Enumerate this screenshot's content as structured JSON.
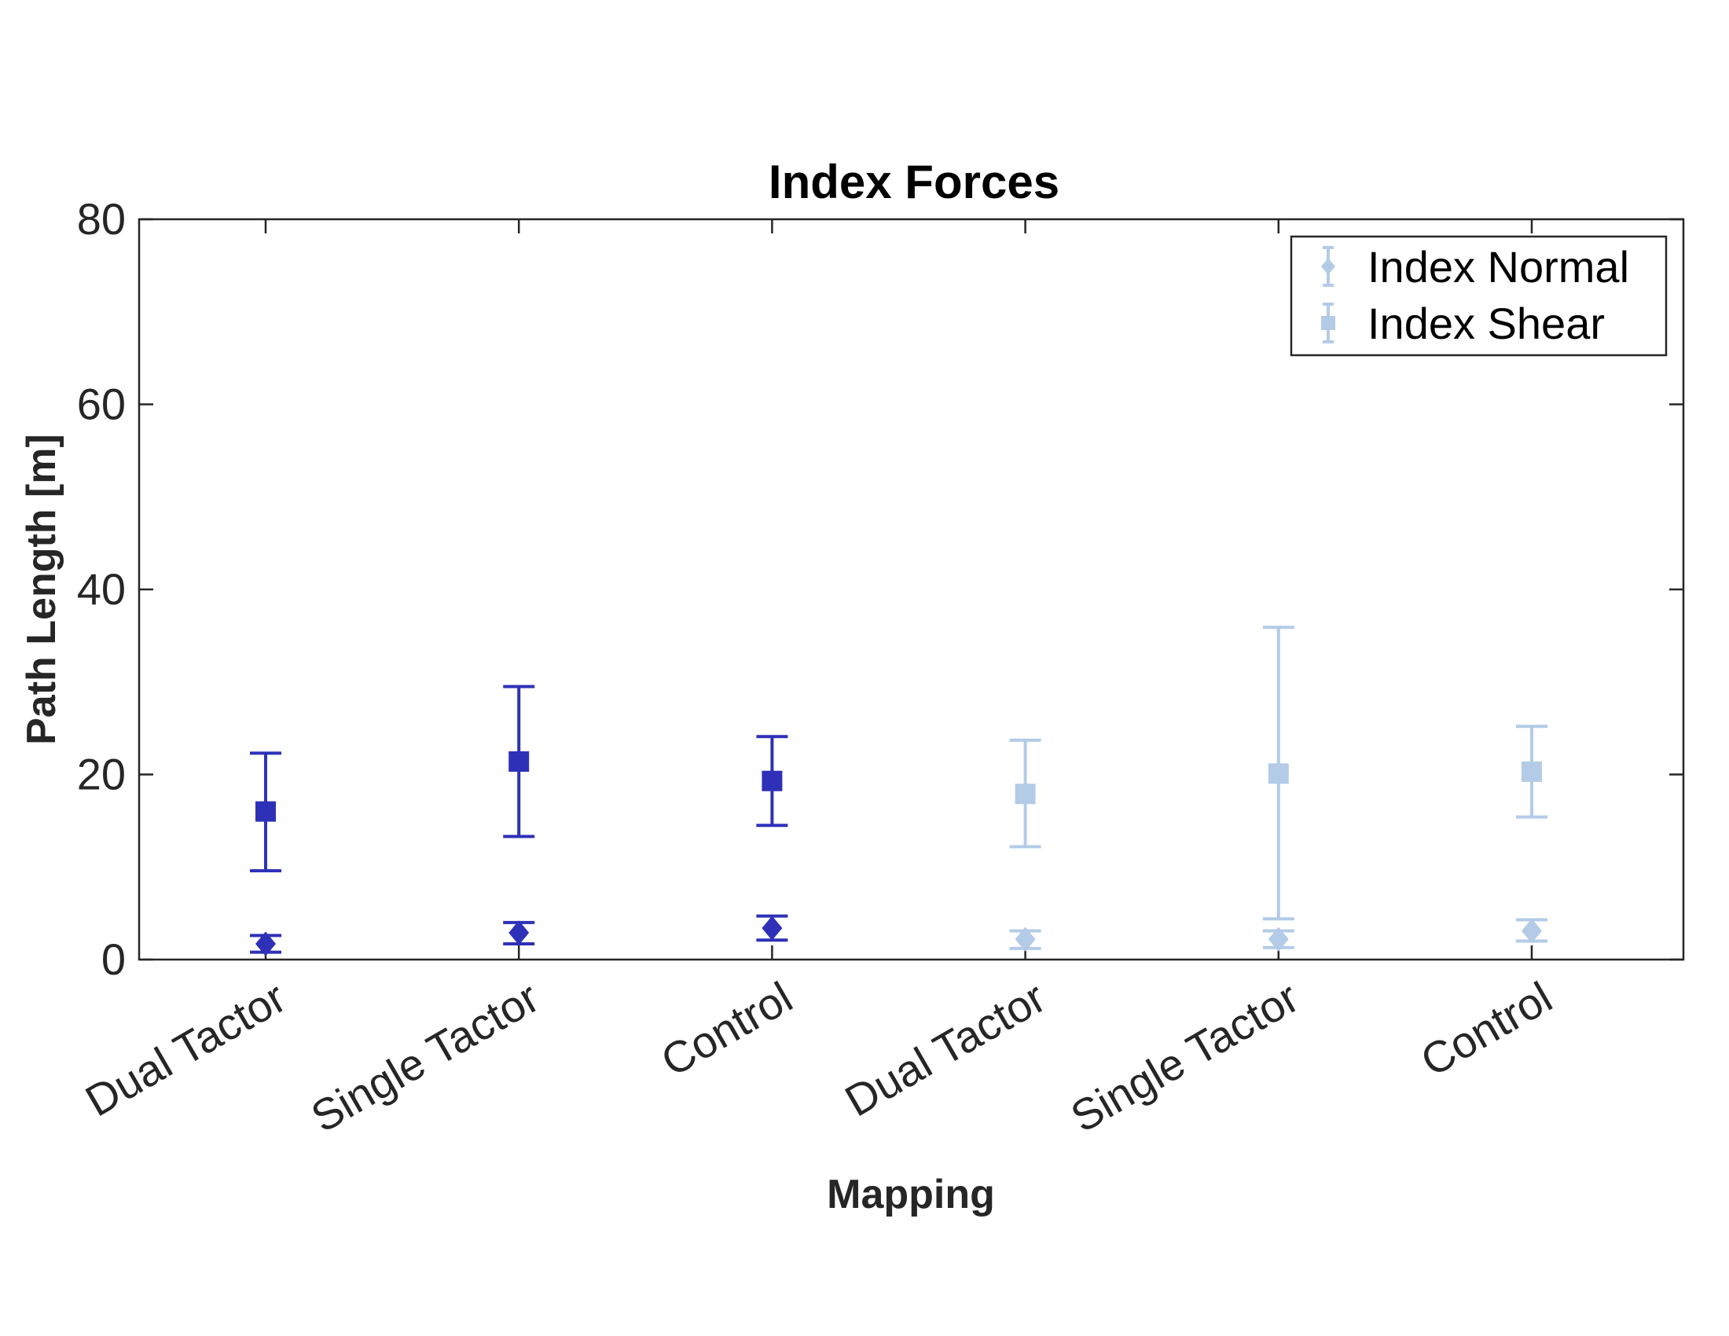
{
  "chart_data": {
    "type": "errorbar",
    "title": "Index Forces",
    "xlabel": "Mapping",
    "ylabel": "Path Length [m]",
    "ylim": [
      0,
      80
    ],
    "yticks": [
      "0",
      "20",
      "40",
      "60",
      "80"
    ],
    "categories": [
      "Dual Tactor",
      "Single Tactor",
      "Control",
      "Dual Tactor",
      "Single Tactor",
      "Control"
    ],
    "grid": false,
    "legend_position": "top-right",
    "series": [
      {
        "name": "Index Normal",
        "marker": "diamond",
        "points": [
          {
            "x": 1,
            "y": 1.7,
            "low": 0.8,
            "high": 2.6,
            "color": "#2e31b8"
          },
          {
            "x": 2,
            "y": 2.9,
            "low": 1.7,
            "high": 4.0,
            "color": "#2e31b8"
          },
          {
            "x": 3,
            "y": 3.4,
            "low": 2.1,
            "high": 4.7,
            "color": "#2e31b8"
          },
          {
            "x": 4,
            "y": 2.2,
            "low": 1.2,
            "high": 3.1,
            "color": "#b3cbe7"
          },
          {
            "x": 5,
            "y": 2.2,
            "low": 1.3,
            "high": 3.1,
            "color": "#b3cbe7"
          },
          {
            "x": 6,
            "y": 3.1,
            "low": 2.0,
            "high": 4.3,
            "color": "#b3cbe7"
          }
        ]
      },
      {
        "name": "Index Shear",
        "marker": "square",
        "points": [
          {
            "x": 1,
            "y": 16.0,
            "low": 9.6,
            "high": 22.3,
            "color": "#2e31b8"
          },
          {
            "x": 2,
            "y": 21.4,
            "low": 13.3,
            "high": 29.5,
            "color": "#2e31b8"
          },
          {
            "x": 3,
            "y": 19.3,
            "low": 14.5,
            "high": 24.1,
            "color": "#2e31b8"
          },
          {
            "x": 4,
            "y": 17.9,
            "low": 12.2,
            "high": 23.7,
            "color": "#b3cbe7"
          },
          {
            "x": 5,
            "y": 20.1,
            "low": 4.4,
            "high": 35.9,
            "color": "#b3cbe7"
          },
          {
            "x": 6,
            "y": 20.3,
            "low": 15.4,
            "high": 25.2,
            "color": "#b3cbe7"
          }
        ]
      }
    ],
    "legend_color": "#b3cbe7",
    "axis_color": "#262626"
  }
}
